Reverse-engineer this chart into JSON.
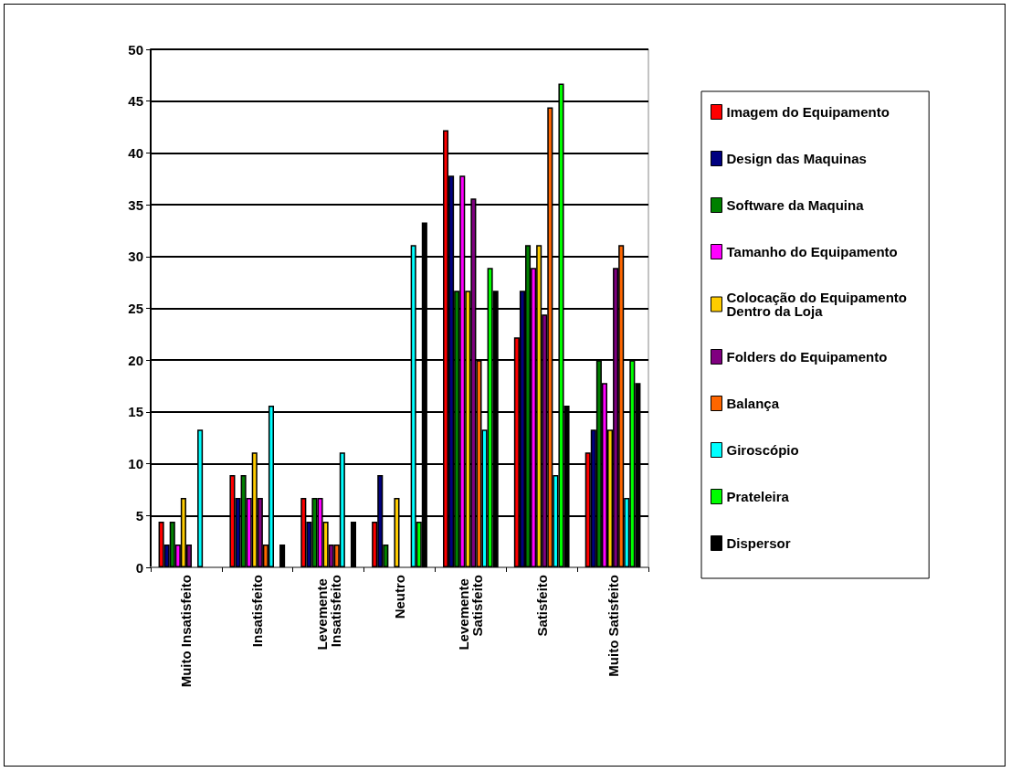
{
  "chart_data": {
    "type": "bar",
    "categories": [
      "Muito Insatisfeito",
      "Insatisfeito",
      "Levemente Insatisfeito",
      "Neutro",
      "Levemente Satisfeito",
      "Satisfeito",
      "Muito Satisfeito"
    ],
    "series": [
      {
        "name": "Imagem do Equipamento",
        "color": "#ff0000",
        "values": [
          4.4,
          8.9,
          6.7,
          4.4,
          42.2,
          22.2,
          11.1
        ]
      },
      {
        "name": "Design das Maquinas",
        "color": "#000080",
        "values": [
          2.2,
          6.7,
          4.4,
          8.9,
          37.8,
          26.7,
          13.3
        ]
      },
      {
        "name": "Software da Maquina",
        "color": "#008000",
        "values": [
          4.4,
          8.9,
          6.7,
          2.2,
          26.7,
          31.1,
          20
        ]
      },
      {
        "name": "Tamanho do Equipamento",
        "color": "#ff00ff",
        "values": [
          2.2,
          6.7,
          6.7,
          0,
          37.8,
          28.9,
          17.8
        ]
      },
      {
        "name": "Colocação do Equipamento Dentro da Loja",
        "color": "#ffcc00",
        "values": [
          6.7,
          11.1,
          4.4,
          6.7,
          26.7,
          31.1,
          13.3
        ]
      },
      {
        "name": "Folders do Equipamento",
        "color": "#800080",
        "values": [
          2.2,
          6.7,
          2.2,
          0,
          35.6,
          24.4,
          28.9
        ]
      },
      {
        "name": "Balança",
        "color": "#ff6600",
        "values": [
          0,
          2.2,
          2.2,
          0,
          20,
          44.4,
          31.1
        ]
      },
      {
        "name": "Giroscópio",
        "color": "#00ffff",
        "values": [
          13.3,
          15.6,
          11.1,
          31.1,
          13.3,
          8.9,
          6.7
        ]
      },
      {
        "name": "Prateleira",
        "color": "#00ff00",
        "values": [
          0,
          0,
          0,
          4.4,
          28.9,
          46.7,
          20
        ]
      },
      {
        "name": "Dispersor",
        "color": "#000000",
        "values": [
          0,
          2.2,
          4.4,
          33.3,
          26.7,
          15.6,
          17.8
        ]
      }
    ],
    "ylim": [
      0,
      50
    ],
    "yticks": [
      0,
      5,
      10,
      15,
      20,
      25,
      30,
      35,
      40,
      45,
      50
    ],
    "grid": "y",
    "legend": "right"
  }
}
